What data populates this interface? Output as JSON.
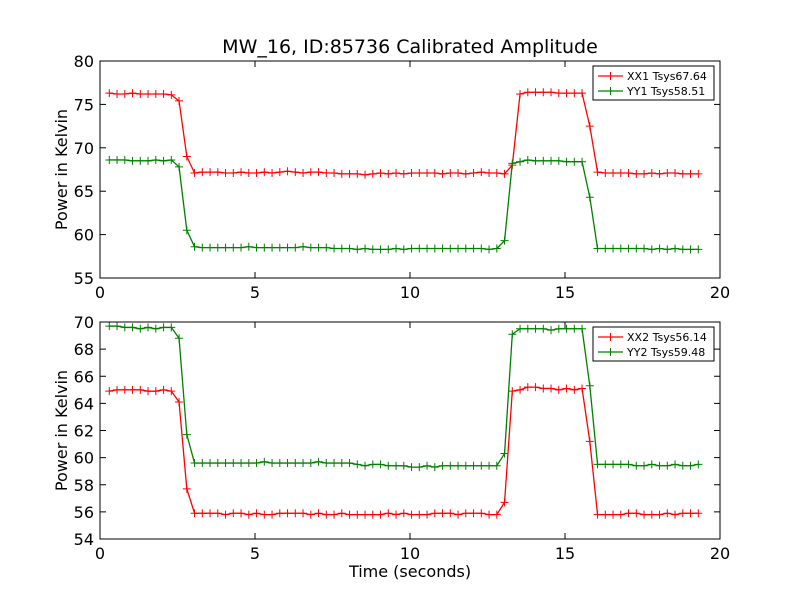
{
  "chart_data": [
    {
      "type": "line",
      "title": "MW_16, ID:85736 Calibrated Amplitude",
      "xlabel": "",
      "ylabel": "Power in Kelvin",
      "xlim": [
        0,
        20
      ],
      "ylim": [
        55,
        80
      ],
      "xticks": [
        0,
        5,
        10,
        15,
        20
      ],
      "yticks": [
        55,
        60,
        65,
        70,
        75,
        80
      ],
      "legend": "top-right",
      "grid": false,
      "x": [
        0.3,
        0.55,
        0.8,
        1.05,
        1.3,
        1.55,
        1.8,
        2.05,
        2.3,
        2.55,
        2.8,
        3.05,
        3.3,
        3.55,
        3.8,
        4.05,
        4.3,
        4.55,
        4.8,
        5.05,
        5.3,
        5.55,
        5.8,
        6.05,
        6.3,
        6.55,
        6.8,
        7.05,
        7.3,
        7.55,
        7.8,
        8.05,
        8.3,
        8.55,
        8.8,
        9.05,
        9.3,
        9.55,
        9.8,
        10.05,
        10.3,
        10.55,
        10.8,
        11.05,
        11.3,
        11.55,
        11.8,
        12.05,
        12.3,
        12.55,
        12.8,
        13.05,
        13.3,
        13.55,
        13.8,
        14.05,
        14.3,
        14.55,
        14.8,
        15.05,
        15.3,
        15.55,
        15.8,
        16.05,
        16.3,
        16.55,
        16.8,
        17.05,
        17.3,
        17.55,
        17.8,
        18.05,
        18.3,
        18.55,
        18.8,
        19.05,
        19.3
      ],
      "series": [
        {
          "name": "XX1 Tsys67.64",
          "color": "#ff0000",
          "values": [
            76.3,
            76.2,
            76.2,
            76.3,
            76.2,
            76.2,
            76.2,
            76.2,
            76.1,
            75.4,
            69.0,
            67.1,
            67.2,
            67.2,
            67.2,
            67.1,
            67.1,
            67.2,
            67.1,
            67.1,
            67.2,
            67.1,
            67.2,
            67.3,
            67.2,
            67.1,
            67.2,
            67.2,
            67.1,
            67.1,
            67.0,
            67.0,
            67.0,
            66.9,
            67.0,
            67.1,
            67.0,
            67.1,
            67.0,
            67.1,
            67.1,
            67.1,
            67.1,
            67.0,
            67.1,
            67.1,
            67.0,
            67.1,
            67.2,
            67.1,
            67.1,
            67.0,
            68.0,
            76.2,
            76.4,
            76.4,
            76.4,
            76.4,
            76.3,
            76.3,
            76.3,
            76.3,
            72.5,
            67.2,
            67.1,
            67.1,
            67.1,
            67.1,
            67.0,
            67.0,
            67.1,
            67.0,
            67.1,
            67.1,
            67.0,
            67.0,
            67.0
          ]
        },
        {
          "name": "YY1 Tsys58.51",
          "color": "#008000",
          "values": [
            68.6,
            68.6,
            68.6,
            68.5,
            68.5,
            68.5,
            68.6,
            68.5,
            68.6,
            67.8,
            60.5,
            58.6,
            58.5,
            58.5,
            58.5,
            58.5,
            58.5,
            58.5,
            58.6,
            58.5,
            58.5,
            58.5,
            58.5,
            58.5,
            58.5,
            58.6,
            58.5,
            58.5,
            58.5,
            58.4,
            58.4,
            58.4,
            58.3,
            58.4,
            58.3,
            58.3,
            58.3,
            58.4,
            58.3,
            58.4,
            58.4,
            58.4,
            58.4,
            58.4,
            58.4,
            58.4,
            58.4,
            58.4,
            58.4,
            58.3,
            58.4,
            59.3,
            68.2,
            68.4,
            68.6,
            68.5,
            68.5,
            68.5,
            68.5,
            68.4,
            68.4,
            68.4,
            64.3,
            58.4,
            58.4,
            58.4,
            58.4,
            58.4,
            58.4,
            58.4,
            58.3,
            58.4,
            58.3,
            58.4,
            58.3,
            58.3,
            58.3
          ]
        }
      ]
    },
    {
      "type": "line",
      "title": "",
      "xlabel": "Time (seconds)",
      "ylabel": "Power in Kelvin",
      "xlim": [
        0,
        20
      ],
      "ylim": [
        54,
        70
      ],
      "xticks": [
        0,
        5,
        10,
        15,
        20
      ],
      "yticks": [
        54,
        56,
        58,
        60,
        62,
        64,
        66,
        68,
        70
      ],
      "legend": "top-right",
      "grid": false,
      "x": [
        0.3,
        0.55,
        0.8,
        1.05,
        1.3,
        1.55,
        1.8,
        2.05,
        2.3,
        2.55,
        2.8,
        3.05,
        3.3,
        3.55,
        3.8,
        4.05,
        4.3,
        4.55,
        4.8,
        5.05,
        5.3,
        5.55,
        5.8,
        6.05,
        6.3,
        6.55,
        6.8,
        7.05,
        7.3,
        7.55,
        7.8,
        8.05,
        8.3,
        8.55,
        8.8,
        9.05,
        9.3,
        9.55,
        9.8,
        10.05,
        10.3,
        10.55,
        10.8,
        11.05,
        11.3,
        11.55,
        11.8,
        12.05,
        12.3,
        12.55,
        12.8,
        13.05,
        13.3,
        13.55,
        13.8,
        14.05,
        14.3,
        14.55,
        14.8,
        15.05,
        15.3,
        15.55,
        15.8,
        16.05,
        16.3,
        16.55,
        16.8,
        17.05,
        17.3,
        17.55,
        17.8,
        18.05,
        18.3,
        18.55,
        18.8,
        19.05,
        19.3
      ],
      "series": [
        {
          "name": "XX2 Tsys56.14",
          "color": "#ff0000",
          "values": [
            64.9,
            65.0,
            65.0,
            65.0,
            65.0,
            64.9,
            64.9,
            65.0,
            64.9,
            64.1,
            57.7,
            55.9,
            55.9,
            55.9,
            55.9,
            55.8,
            55.9,
            55.9,
            55.8,
            55.9,
            55.8,
            55.8,
            55.9,
            55.9,
            55.9,
            55.9,
            55.8,
            55.9,
            55.8,
            55.8,
            55.9,
            55.8,
            55.8,
            55.8,
            55.8,
            55.8,
            55.9,
            55.8,
            55.9,
            55.8,
            55.8,
            55.8,
            55.9,
            55.9,
            55.9,
            55.8,
            55.9,
            55.9,
            55.9,
            55.8,
            55.8,
            56.7,
            64.9,
            65.0,
            65.2,
            65.2,
            65.1,
            65.1,
            65.0,
            65.1,
            65.0,
            65.1,
            61.2,
            55.8,
            55.8,
            55.8,
            55.8,
            55.9,
            55.9,
            55.8,
            55.8,
            55.8,
            55.9,
            55.8,
            55.9,
            55.9,
            55.9
          ]
        },
        {
          "name": "YY2 Tsys59.48",
          "color": "#008000",
          "values": [
            69.7,
            69.7,
            69.6,
            69.6,
            69.5,
            69.6,
            69.5,
            69.6,
            69.6,
            68.8,
            61.7,
            59.6,
            59.6,
            59.6,
            59.6,
            59.6,
            59.6,
            59.6,
            59.6,
            59.6,
            59.7,
            59.6,
            59.6,
            59.6,
            59.6,
            59.6,
            59.6,
            59.7,
            59.6,
            59.6,
            59.6,
            59.6,
            59.5,
            59.4,
            59.5,
            59.5,
            59.4,
            59.4,
            59.4,
            59.3,
            59.3,
            59.4,
            59.3,
            59.4,
            59.4,
            59.4,
            59.4,
            59.4,
            59.4,
            59.4,
            59.4,
            60.3,
            69.1,
            69.5,
            69.5,
            69.5,
            69.5,
            69.4,
            69.5,
            69.5,
            69.5,
            69.5,
            65.3,
            59.5,
            59.5,
            59.5,
            59.5,
            59.5,
            59.4,
            59.4,
            59.5,
            59.4,
            59.4,
            59.5,
            59.4,
            59.4,
            59.5
          ]
        }
      ]
    }
  ]
}
